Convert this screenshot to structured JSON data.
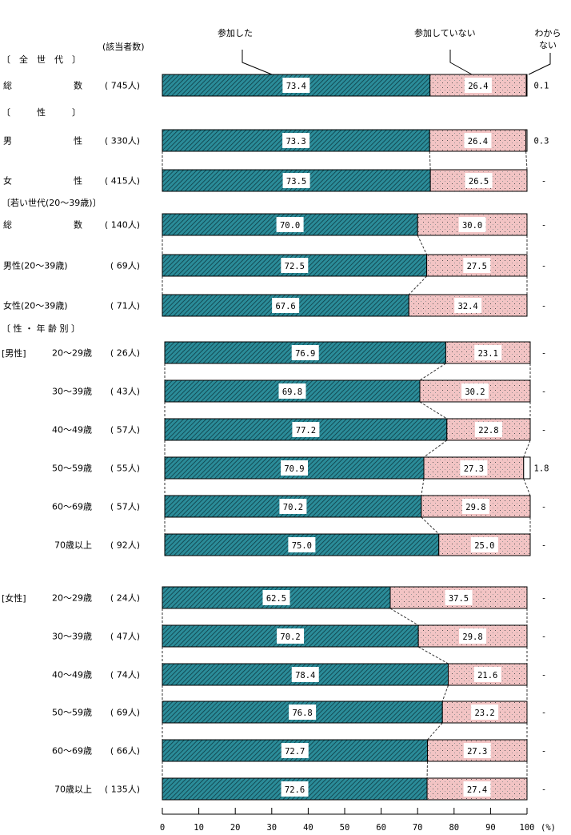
{
  "chart_data": {
    "type": "bar",
    "orientation": "horizontal",
    "stacked": true,
    "unit_label": "(%)",
    "xlim": [
      0,
      100
    ],
    "x_ticks": [
      0,
      10,
      20,
      30,
      40,
      50,
      60,
      70,
      80,
      90,
      100
    ],
    "count_header": "(該当者数)",
    "legend": {
      "participated": "参加した",
      "not_participated": "参加していない",
      "unknown": "わからない"
    },
    "colors": {
      "participated": "#2b8c99",
      "not_participated": "#f2c4c4",
      "unknown": "#ffffff"
    },
    "sections": [
      {
        "title": "〔　全　世　代　〕"
      },
      {
        "title": "〔　　　性　　　〕"
      },
      {
        "title": "〔若い世代(20～39歳)〕"
      },
      {
        "title": "〔 性 ・ 年 齢 別 〕"
      }
    ],
    "subgroups": {
      "male": "[男性]",
      "female": "[女性]"
    },
    "rows": [
      {
        "label": "総　　　　　　　数",
        "n": "( 745人)",
        "participated": 73.4,
        "not_participated": 26.4,
        "unknown": 0.1,
        "unknown_label": "0.1"
      },
      {
        "label": "男　　　　　　　性",
        "n": "( 330人)",
        "participated": 73.3,
        "not_participated": 26.4,
        "unknown": 0.3,
        "unknown_label": "0.3"
      },
      {
        "label": "女　　　　　　　性",
        "n": "( 415人)",
        "participated": 73.5,
        "not_participated": 26.5,
        "unknown": 0,
        "unknown_label": "-"
      },
      {
        "label": "総　　　　　　　数",
        "n": "( 140人)",
        "participated": 70.0,
        "not_participated": 30.0,
        "unknown": 0,
        "unknown_label": "-"
      },
      {
        "label": "男性(20～39歳)",
        "n": "(  69人)",
        "participated": 72.5,
        "not_participated": 27.5,
        "unknown": 0,
        "unknown_label": "-"
      },
      {
        "label": "女性(20～39歳)",
        "n": "(  71人)",
        "participated": 67.6,
        "not_participated": 32.4,
        "unknown": 0,
        "unknown_label": "-"
      },
      {
        "label": "20～29歳",
        "n": "(  26人)",
        "participated": 76.9,
        "not_participated": 23.1,
        "unknown": 0,
        "unknown_label": "-"
      },
      {
        "label": "30～39歳",
        "n": "(  43人)",
        "participated": 69.8,
        "not_participated": 30.2,
        "unknown": 0,
        "unknown_label": "-"
      },
      {
        "label": "40～49歳",
        "n": "(  57人)",
        "participated": 77.2,
        "not_participated": 22.8,
        "unknown": 0,
        "unknown_label": "-"
      },
      {
        "label": "50～59歳",
        "n": "(  55人)",
        "participated": 70.9,
        "not_participated": 27.3,
        "unknown": 1.8,
        "unknown_label": "1.8"
      },
      {
        "label": "60～69歳",
        "n": "(  57人)",
        "participated": 70.2,
        "not_participated": 29.8,
        "unknown": 0,
        "unknown_label": "-"
      },
      {
        "label": "70歳以上",
        "n": "(  92人)",
        "participated": 75.0,
        "not_participated": 25.0,
        "unknown": 0,
        "unknown_label": "-"
      },
      {
        "label": "20～29歳",
        "n": "(  24人)",
        "participated": 62.5,
        "not_participated": 37.5,
        "unknown": 0,
        "unknown_label": "-"
      },
      {
        "label": "30～39歳",
        "n": "(  47人)",
        "participated": 70.2,
        "not_participated": 29.8,
        "unknown": 0,
        "unknown_label": "-"
      },
      {
        "label": "40～49歳",
        "n": "(  74人)",
        "participated": 78.4,
        "not_participated": 21.6,
        "unknown": 0,
        "unknown_label": "-"
      },
      {
        "label": "50～59歳",
        "n": "(  69人)",
        "participated": 76.8,
        "not_participated": 23.2,
        "unknown": 0,
        "unknown_label": "-"
      },
      {
        "label": "60～69歳",
        "n": "(  66人)",
        "participated": 72.7,
        "not_participated": 27.3,
        "unknown": 0,
        "unknown_label": "-"
      },
      {
        "label": "70歳以上",
        "n": "( 135人)",
        "participated": 72.6,
        "not_participated": 27.4,
        "unknown": 0,
        "unknown_label": "-"
      }
    ]
  }
}
